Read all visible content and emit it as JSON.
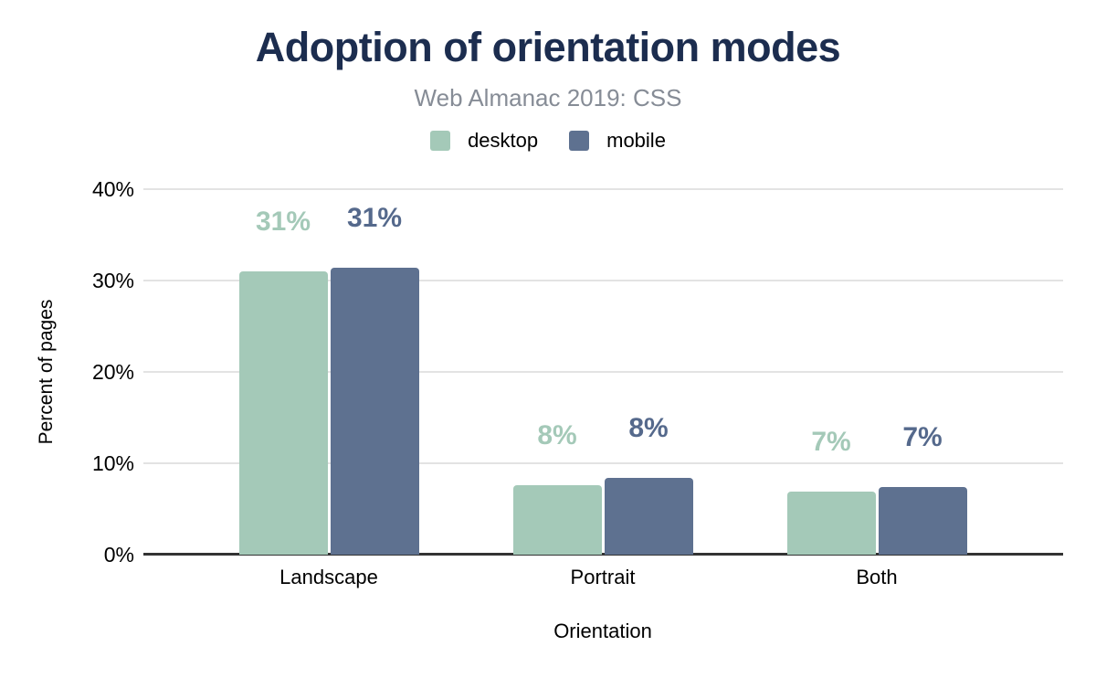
{
  "chart_data": {
    "type": "bar",
    "title": "Adoption of orientation modes",
    "subtitle": "Web Almanac 2019: CSS",
    "xlabel": "Orientation",
    "ylabel": "Percent of pages",
    "categories": [
      "Landscape",
      "Portrait",
      "Both"
    ],
    "series": [
      {
        "name": "desktop",
        "color": "#a4c9b8",
        "label_color": "#a4c9b8",
        "values": [
          31.0,
          7.6,
          6.9
        ],
        "labels": [
          "31%",
          "8%",
          "7%"
        ]
      },
      {
        "name": "mobile",
        "color": "#5e7190",
        "label_color": "#55698c",
        "values": [
          31.4,
          8.4,
          7.4
        ],
        "labels": [
          "31%",
          "8%",
          "7%"
        ]
      }
    ],
    "y_ticks": [
      {
        "value": 0,
        "label": "0%"
      },
      {
        "value": 10,
        "label": "10%"
      },
      {
        "value": 20,
        "label": "20%"
      },
      {
        "value": 30,
        "label": "30%"
      },
      {
        "value": 40,
        "label": "40%"
      }
    ],
    "ylim": [
      0,
      40
    ],
    "grid": true,
    "legend_position": "top"
  },
  "colors": {
    "title": "#1c2d4f",
    "subtitle": "#868c96",
    "gridline": "#e3e3e3",
    "axis_line": "#333333",
    "background": "#ffffff"
  }
}
